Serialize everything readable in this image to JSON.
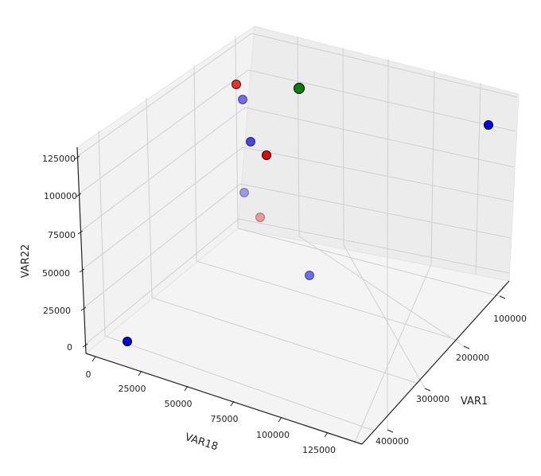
{
  "chart_data": {
    "type": "scatter",
    "projection": "3d",
    "title": "",
    "xlabel": "VAR1",
    "ylabel": "VAR18",
    "zlabel": "VAR22",
    "x_ticks": [
      "100000",
      "200000",
      "300000",
      "400000"
    ],
    "y_ticks": [
      "0",
      "25000",
      "50000",
      "75000",
      "100000",
      "125000"
    ],
    "z_ticks": [
      "0",
      "25000",
      "50000",
      "75000",
      "100000",
      "125000"
    ],
    "grid": true,
    "colors": {
      "blue": "#0000ee",
      "red": "#ee0000",
      "green": "#008000",
      "pane": "#f2f2f2",
      "grid": "#d0d0d0",
      "edge": "#000000"
    },
    "points": [
      {
        "color": "blue",
        "alpha": 1.0,
        "size": "normal"
      },
      {
        "color": "blue",
        "alpha": 0.55,
        "size": "normal"
      },
      {
        "color": "blue",
        "alpha": 0.7,
        "size": "normal"
      },
      {
        "color": "blue",
        "alpha": 0.35,
        "size": "normal"
      },
      {
        "color": "blue",
        "alpha": 0.55,
        "size": "normal"
      },
      {
        "color": "blue",
        "alpha": 1.0,
        "size": "normal"
      },
      {
        "color": "red",
        "alpha": 0.8,
        "size": "normal"
      },
      {
        "color": "red",
        "alpha": 1.0,
        "size": "normal"
      },
      {
        "color": "red",
        "alpha": 0.35,
        "size": "normal"
      },
      {
        "color": "green",
        "alpha": 1.0,
        "size": "large"
      }
    ]
  }
}
